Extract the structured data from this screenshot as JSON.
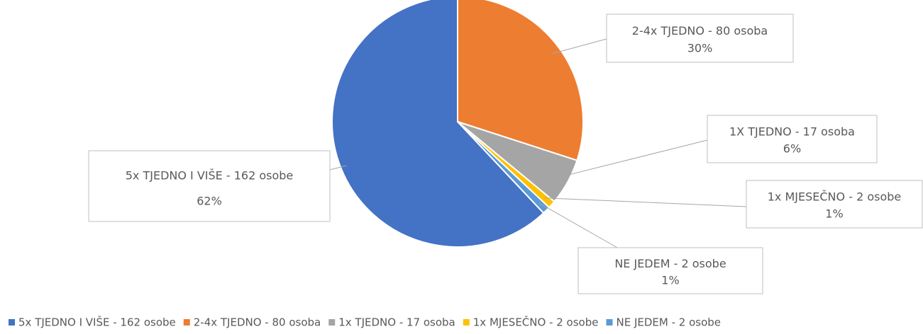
{
  "chart_data": {
    "type": "pie",
    "categories": [
      "5x TJEDNO I VIŠE - 162 osobe",
      "2-4x TJEDNO - 80 osoba",
      "1x TJEDNO - 17 osoba",
      "1x MJESEČNO - 2 osobe",
      "NE JEDEM - 2 osobe"
    ],
    "data_label_categories": [
      "5x TJEDNO I VIŠE - 162 osobe",
      "2-4x TJEDNO - 80 osoba",
      "1X TJEDNO - 17 osoba",
      "1x MJESEČNO - 2 osobe",
      "NE JEDEM - 2 osobe"
    ],
    "values": [
      62,
      30,
      6,
      1,
      1
    ],
    "value_labels": [
      "62%",
      "30%",
      "6%",
      "1%",
      "1%"
    ],
    "colors": [
      "#4472c4",
      "#ed7d31",
      "#a5a5a5",
      "#ffc000",
      "#5b9bd5"
    ],
    "legend": "bottom"
  }
}
